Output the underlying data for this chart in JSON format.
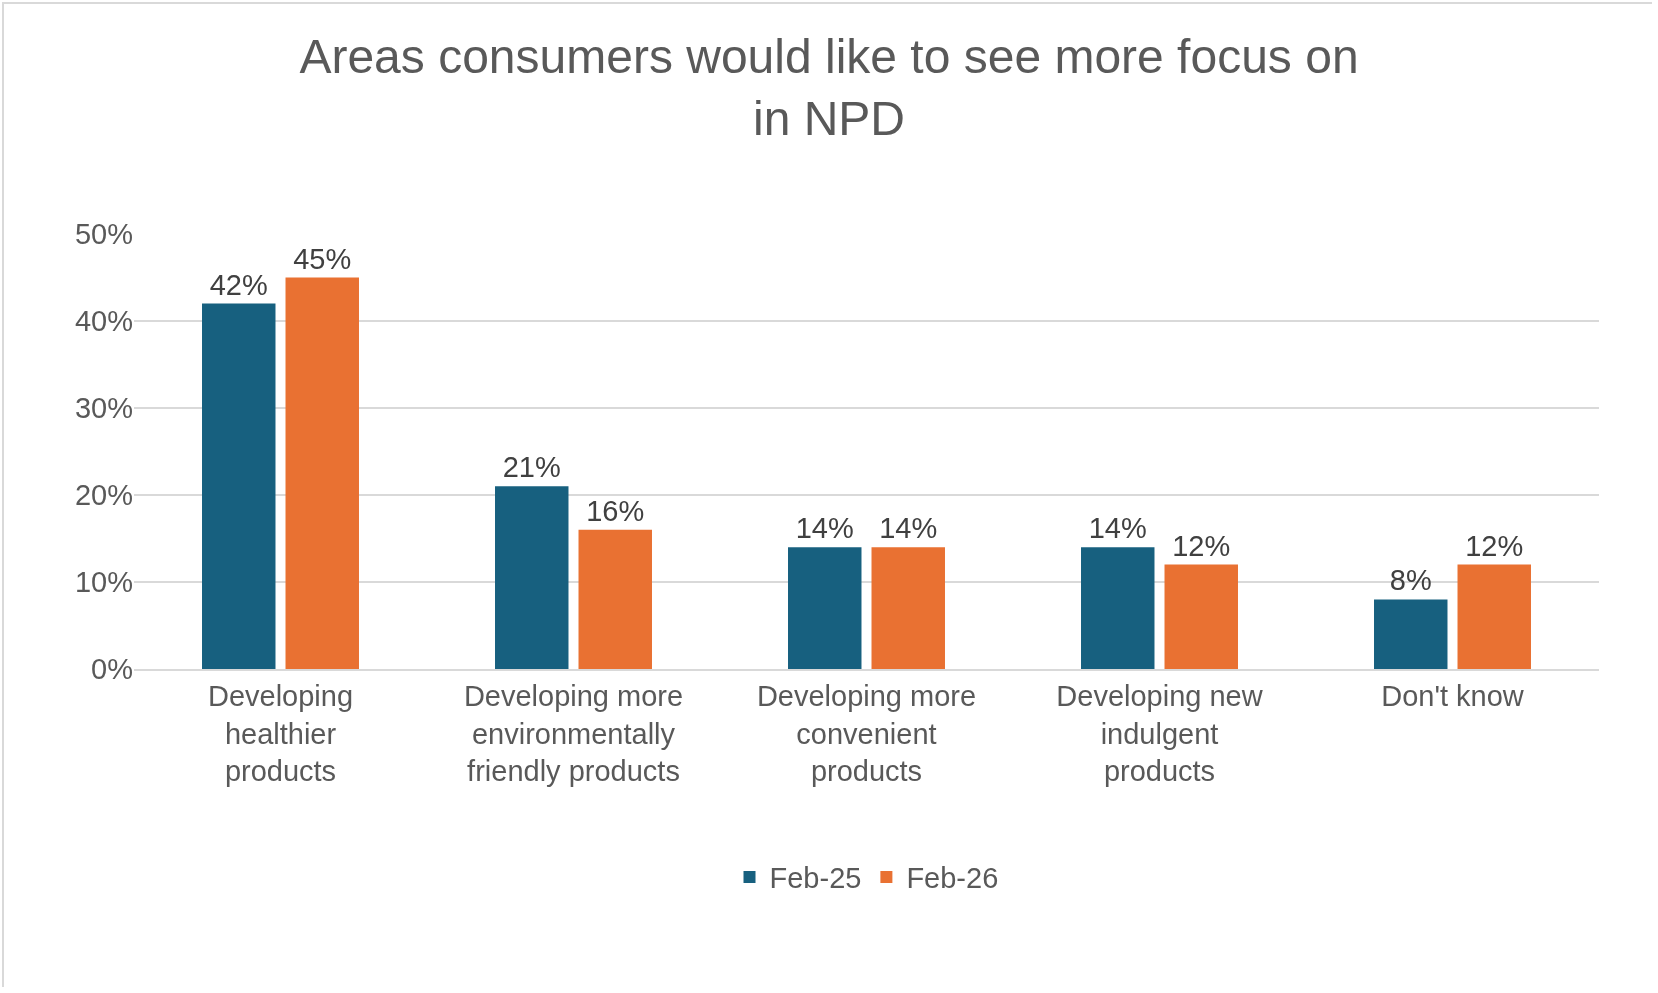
{
  "chart_data": {
    "type": "bar",
    "title": "Areas consumers would like to see more focus on in NPD",
    "categories": [
      "Developing healthier products",
      "Developing more environmentally friendly products",
      "Developing more convenient products",
      "Developing new indulgent products",
      "Don't know"
    ],
    "series": [
      {
        "name": "Feb-25",
        "color": "#17607f",
        "values": [
          42,
          21,
          14,
          14,
          8
        ],
        "value_labels": [
          "42%",
          "21%",
          "14%",
          "14%",
          "8%"
        ]
      },
      {
        "name": "Feb-26",
        "color": "#e97132",
        "values": [
          45,
          16,
          14,
          12,
          12
        ],
        "value_labels": [
          "45%",
          "16%",
          "14%",
          "12%",
          "12%"
        ]
      }
    ],
    "ylim": [
      0,
      50
    ],
    "yticks": [
      {
        "value": 0,
        "label": "0%"
      },
      {
        "value": 10,
        "label": "10%"
      },
      {
        "value": 20,
        "label": "20%"
      },
      {
        "value": 30,
        "label": "30%"
      },
      {
        "value": 40,
        "label": "40%"
      },
      {
        "value": 50,
        "label": "50%"
      }
    ],
    "grid": "y",
    "legend": "bottom"
  }
}
